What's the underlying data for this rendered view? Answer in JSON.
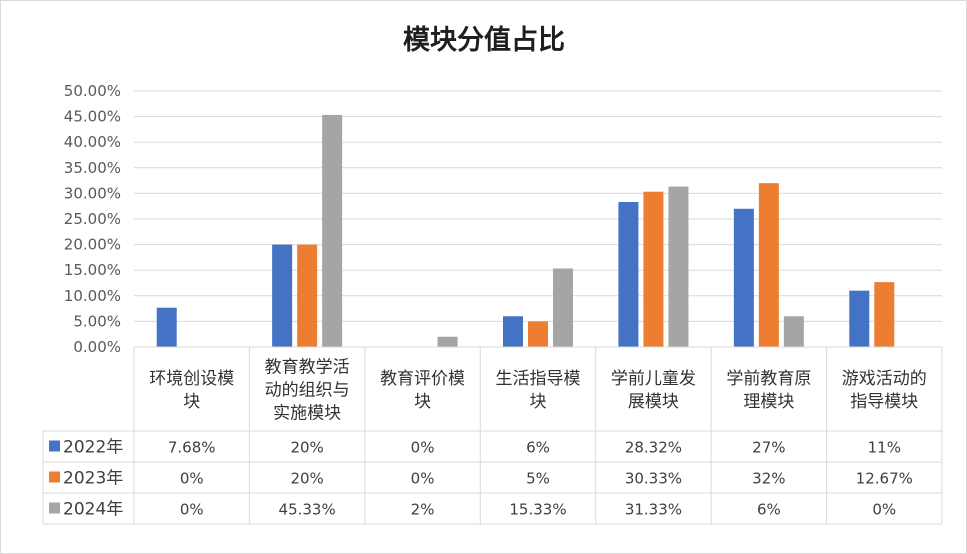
{
  "chart_data": {
    "type": "bar",
    "title": "模块分值占比",
    "categories": [
      [
        "环境创设模",
        "块"
      ],
      [
        "教育教学活",
        "动的组织与",
        "实施模块"
      ],
      [
        "教育评价模",
        "块"
      ],
      [
        "生活指导模",
        "块"
      ],
      [
        "学前儿童发",
        "展模块"
      ],
      [
        "学前教育原",
        "理模块"
      ],
      [
        "游戏活动的",
        "指导模块"
      ]
    ],
    "y_ticks": [
      "50.00%",
      "45.00%",
      "40.00%",
      "35.00%",
      "30.00%",
      "25.00%",
      "20.00%",
      "15.00%",
      "10.00%",
      "5.00%",
      "0.00%"
    ],
    "ylim": [
      0,
      50
    ],
    "grid": true,
    "legend": "data-table",
    "series": [
      {
        "name": "2022年",
        "color": "#4472C4",
        "values": [
          7.68,
          20,
          0,
          6,
          28.32,
          27,
          11
        ],
        "labels": [
          "7.68%",
          "20%",
          "0%",
          "6%",
          "28.32%",
          "27%",
          "11%"
        ]
      },
      {
        "name": "2023年",
        "color": "#ED7D31",
        "values": [
          0,
          20,
          0,
          5,
          30.33,
          32,
          12.67
        ],
        "labels": [
          "0%",
          "20%",
          "0%",
          "5%",
          "30.33%",
          "32%",
          "12.67%"
        ]
      },
      {
        "name": "2024年",
        "color": "#A5A5A5",
        "values": [
          0,
          45.33,
          2,
          15.33,
          31.33,
          6,
          0
        ],
        "labels": [
          "0%",
          "45.33%",
          "2%",
          "15.33%",
          "31.33%",
          "6%",
          "0%"
        ]
      }
    ]
  }
}
